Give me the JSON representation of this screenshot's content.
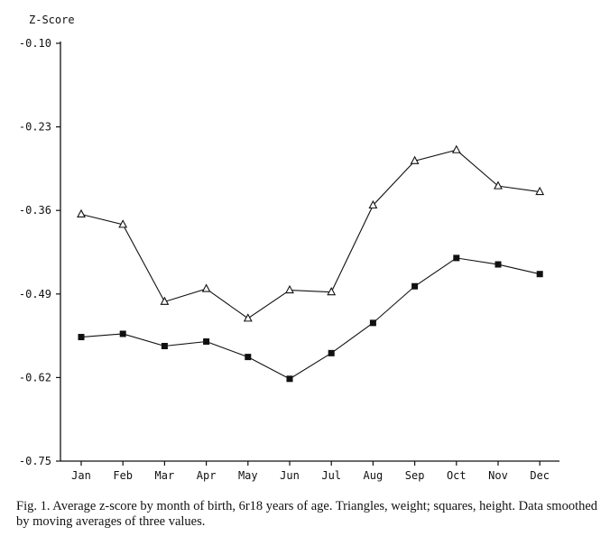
{
  "chart_data": {
    "type": "line",
    "ylabel": "Z-Score",
    "xlabel": "",
    "ylim": [
      -0.75,
      -0.1
    ],
    "yticks": [
      -0.1,
      -0.23,
      -0.36,
      -0.49,
      -0.62,
      -0.75
    ],
    "ytick_labels": [
      "-0.10",
      "-0.23",
      "-0.36",
      "-0.49",
      "-0.62",
      "-0.75"
    ],
    "categories": [
      "Jan",
      "Feb",
      "Mar",
      "Apr",
      "May",
      "Jun",
      "Jul",
      "Aug",
      "Sep",
      "Oct",
      "Nov",
      "Dec"
    ],
    "series": [
      {
        "name": "weight",
        "marker": "triangle-open",
        "values": [
          -0.366,
          -0.382,
          -0.502,
          -0.482,
          -0.528,
          -0.484,
          -0.487,
          -0.352,
          -0.283,
          -0.266,
          -0.322,
          -0.331
        ]
      },
      {
        "name": "height",
        "marker": "square-filled",
        "values": [
          -0.557,
          -0.552,
          -0.571,
          -0.564,
          -0.588,
          -0.622,
          -0.582,
          -0.535,
          -0.478,
          -0.434,
          -0.444,
          -0.459
        ]
      }
    ]
  },
  "caption": "Fig. 1. Average z-score by month of birth, 6r18 years of age. Triangles, weight; squares, height. Data smoothed by moving averages of three values."
}
